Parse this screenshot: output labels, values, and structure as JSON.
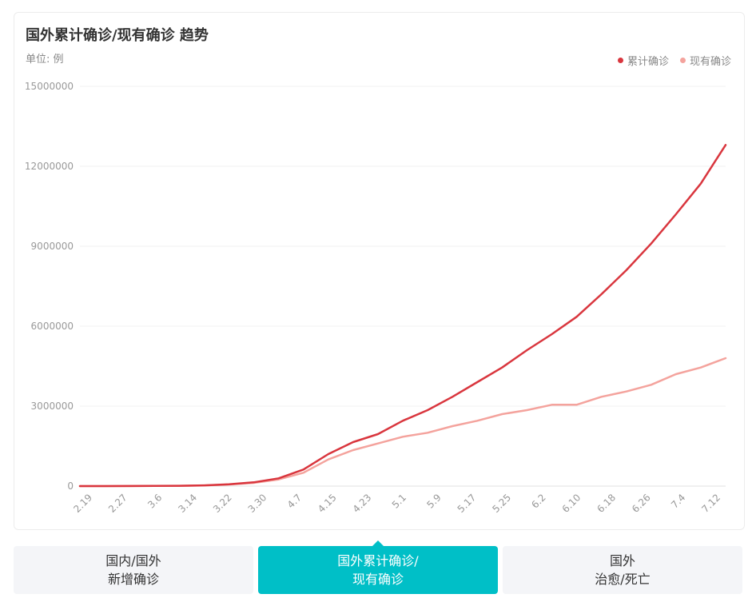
{
  "header": {
    "title": "国外累计确诊/现有确诊 趋势",
    "unit": "单位: 例"
  },
  "colors": {
    "cumulative": "#d9363e",
    "current": "#f4a39d",
    "grid": "#f2f2f2",
    "axis_text": "#999999",
    "active_tab": "#00bfc7"
  },
  "chart_data": {
    "type": "line",
    "title": "国外累计确诊/现有确诊 趋势",
    "ylabel": "单位: 例",
    "ylim": [
      0,
      15000000
    ],
    "yticks": [
      "0",
      "3000000",
      "6000000",
      "9000000",
      "12000000",
      "15000000"
    ],
    "xticks": [
      "2.19",
      "2.27",
      "3.6",
      "3.14",
      "3.22",
      "3.30",
      "4.7",
      "4.15",
      "4.23",
      "5.1",
      "5.9",
      "5.17",
      "5.25",
      "6.2",
      "6.10",
      "6.18",
      "6.26",
      "7.4",
      "7.12"
    ],
    "legend_position": "top-right",
    "grid": true,
    "series": [
      {
        "name": "累计确诊",
        "values": [
          0,
          0,
          2000,
          6000,
          12000,
          28000,
          70000,
          140000,
          290000,
          620000,
          1200000,
          1650000,
          1950000,
          2450000,
          2850000,
          3350000,
          3900000,
          4450000,
          5100000,
          5700000,
          6350000,
          7200000,
          8100000,
          9100000,
          10200000,
          11350000,
          12800000
        ]
      },
      {
        "name": "现有确诊",
        "values": [
          0,
          0,
          1500,
          5000,
          10000,
          25000,
          60000,
          120000,
          250000,
          500000,
          1000000,
          1350000,
          1600000,
          1850000,
          2000000,
          2250000,
          2450000,
          2700000,
          2850000,
          3050000,
          3050000,
          3350000,
          3550000,
          3800000,
          4200000,
          4450000,
          4800000
        ]
      }
    ]
  },
  "tabs": [
    {
      "line1": "国内/国外",
      "line2": "新增确诊"
    },
    {
      "line1": "国外累计确诊/",
      "line2": "现有确诊"
    },
    {
      "line1": "国外",
      "line2": "治愈/死亡"
    }
  ]
}
